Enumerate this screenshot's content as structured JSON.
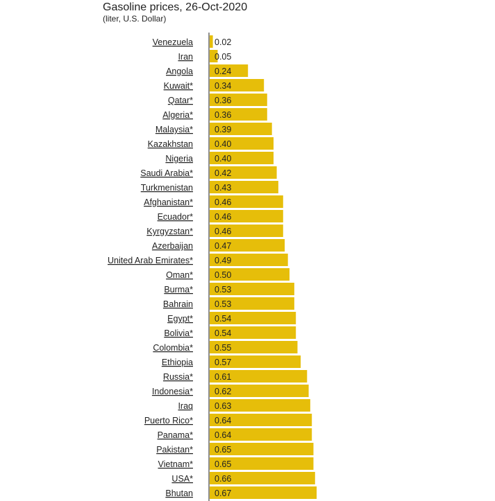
{
  "chart_data": {
    "type": "bar",
    "orientation": "horizontal",
    "title": "Gasoline prices, 26-Oct-2020",
    "subtitle": "(liter, U.S. Dollar)",
    "xlabel": "",
    "ylabel": "",
    "grid": false,
    "bar_color": "#e6be0a",
    "axis_color": "#222222",
    "categories": [
      "Venezuela",
      "Iran",
      "Angola",
      "Kuwait*",
      "Qatar*",
      "Algeria*",
      "Malaysia*",
      "Kazakhstan",
      "Nigeria",
      "Saudi Arabia*",
      "Turkmenistan",
      "Afghanistan*",
      "Ecuador*",
      "Kyrgyzstan*",
      "Azerbaijan",
      "United Arab Emirates*",
      "Oman*",
      "Burma*",
      "Bahrain",
      "Egypt*",
      "Bolivia*",
      "Colombia*",
      "Ethiopia",
      "Russia*",
      "Indonesia*",
      "Iraq",
      "Puerto Rico*",
      "Panama*",
      "Pakistan*",
      "Vietnam*",
      "USA*",
      "Bhutan"
    ],
    "values": [
      0.02,
      0.05,
      0.24,
      0.34,
      0.36,
      0.36,
      0.39,
      0.4,
      0.4,
      0.42,
      0.43,
      0.46,
      0.46,
      0.46,
      0.47,
      0.49,
      0.5,
      0.53,
      0.53,
      0.54,
      0.54,
      0.55,
      0.57,
      0.61,
      0.62,
      0.63,
      0.64,
      0.64,
      0.65,
      0.65,
      0.66,
      0.67
    ],
    "value_labels": [
      "0.02",
      "0.05",
      "0.24",
      "0.34",
      "0.36",
      "0.36",
      "0.39",
      "0.40",
      "0.40",
      "0.42",
      "0.43",
      "0.46",
      "0.46",
      "0.46",
      "0.47",
      "0.49",
      "0.50",
      "0.53",
      "0.53",
      "0.54",
      "0.54",
      "0.55",
      "0.57",
      "0.61",
      "0.62",
      "0.63",
      "0.64",
      "0.64",
      "0.65",
      "0.65",
      "0.66",
      "0.67"
    ]
  }
}
